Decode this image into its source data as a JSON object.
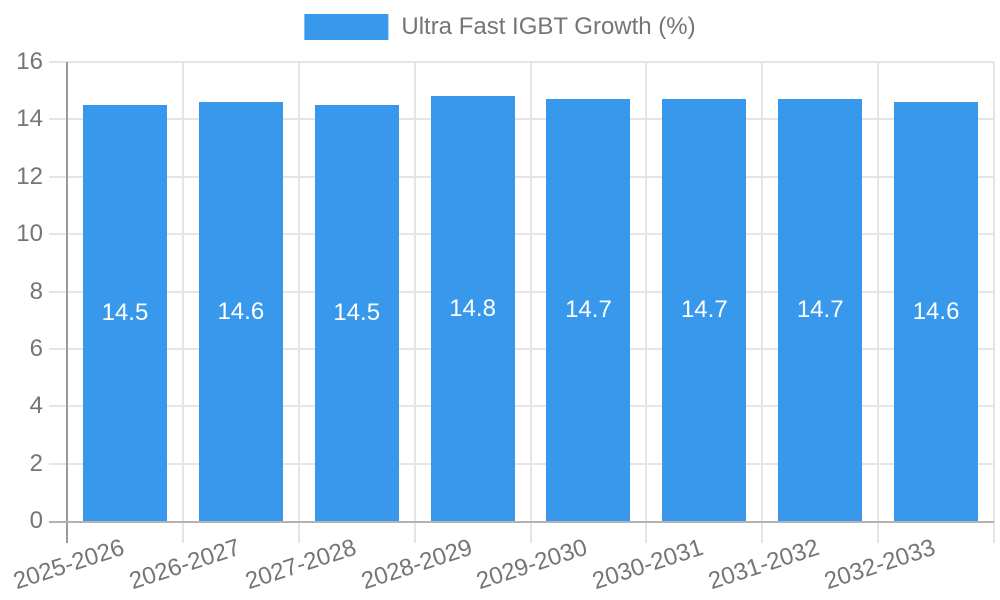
{
  "chart_data": {
    "type": "bar",
    "title": "",
    "legend_label": "Ultra Fast IGBT Growth (%)",
    "legend_position": "top",
    "categories": [
      "2025-2026",
      "2026-2027",
      "2027-2028",
      "2028-2029",
      "2029-2030",
      "2030-2031",
      "2031-2032",
      "2032-2033"
    ],
    "series": [
      {
        "name": "Ultra Fast IGBT Growth (%)",
        "values": [
          14.5,
          14.6,
          14.5,
          14.8,
          14.7,
          14.7,
          14.7,
          14.6
        ]
      }
    ],
    "bar_value_labels": [
      "14.5",
      "14.6",
      "14.5",
      "14.8",
      "14.7",
      "14.7",
      "14.7",
      "14.6"
    ],
    "xlabel": "",
    "ylabel": "",
    "ylim": [
      0,
      16
    ],
    "yticks": [
      0,
      2,
      4,
      6,
      8,
      10,
      12,
      14,
      16
    ],
    "grid": true,
    "x_label_rotation_deg": -18
  },
  "colors": {
    "bar": "#3899EC",
    "bar_label": "#FFFFFF",
    "axis_text": "#757575",
    "gridline": "#E5E5E5",
    "y_axis_line": "#9B9B9B",
    "baseline": "#B3B3B3",
    "background": "#FFFFFF"
  }
}
